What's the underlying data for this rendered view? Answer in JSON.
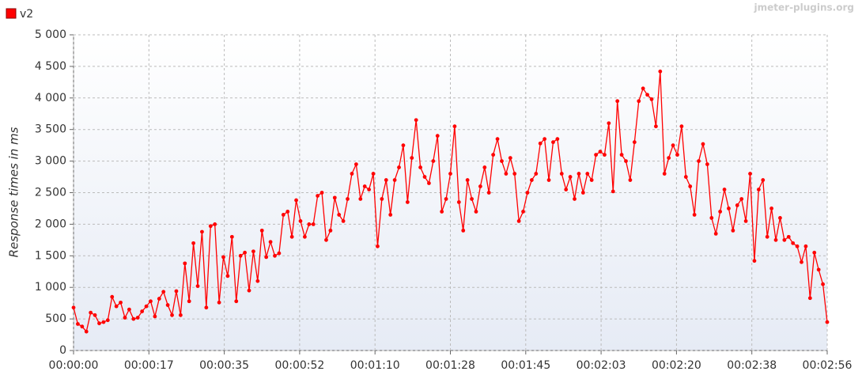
{
  "chart_data": {
    "type": "line",
    "watermark": "jmeter-plugins.org",
    "y_label": "Response times in ms",
    "x": [
      0,
      1,
      2,
      3,
      4,
      5,
      6,
      7,
      8,
      9,
      10,
      11,
      12,
      13,
      14,
      15,
      16,
      17,
      18,
      19,
      20,
      21,
      22,
      23,
      24,
      25,
      26,
      27,
      28,
      29,
      30,
      31,
      32,
      33,
      34,
      35,
      36,
      37,
      38,
      39,
      40,
      41,
      42,
      43,
      44,
      45,
      46,
      47,
      48,
      49,
      50,
      51,
      52,
      53,
      54,
      55,
      56,
      57,
      58,
      59,
      60,
      61,
      62,
      63,
      64,
      65,
      66,
      67,
      68,
      69,
      70,
      71,
      72,
      73,
      74,
      75,
      76,
      77,
      78,
      79,
      80,
      81,
      82,
      83,
      84,
      85,
      86,
      87,
      88,
      89,
      90,
      91,
      92,
      93,
      94,
      95,
      96,
      97,
      98,
      99,
      100,
      101,
      102,
      103,
      104,
      105,
      106,
      107,
      108,
      109,
      110,
      111,
      112,
      113,
      114,
      115,
      116,
      117,
      118,
      119,
      120,
      121,
      122,
      123,
      124,
      125,
      126,
      127,
      128,
      129,
      130,
      131,
      132,
      133,
      134,
      135,
      136,
      137,
      138,
      139,
      140,
      141,
      142,
      143,
      144,
      145,
      146,
      147,
      148,
      149,
      150,
      151,
      152,
      153,
      154,
      155,
      156,
      157,
      158,
      159,
      160,
      161,
      162,
      163,
      164,
      165,
      166,
      167,
      168,
      169,
      170,
      171,
      172,
      173,
      174,
      175,
      176
    ],
    "series": [
      {
        "name": "v2",
        "color": "#ff0000",
        "values": [
          680,
          420,
          380,
          300,
          600,
          560,
          430,
          450,
          480,
          850,
          700,
          760,
          520,
          650,
          500,
          520,
          620,
          700,
          780,
          540,
          820,
          930,
          720,
          560,
          940,
          560,
          1380,
          780,
          1700,
          1020,
          1880,
          680,
          1970,
          2000,
          760,
          1480,
          1180,
          1800,
          780,
          1500,
          1550,
          950,
          1570,
          1100,
          1900,
          1480,
          1720,
          1500,
          1540,
          2150,
          2200,
          1800,
          2380,
          2050,
          1800,
          2000,
          2000,
          2450,
          2500,
          1750,
          1900,
          2420,
          2150,
          2050,
          2400,
          2800,
          2950,
          2400,
          2600,
          2550,
          2800,
          1650,
          2400,
          2700,
          2150,
          2700,
          2900,
          3250,
          2350,
          3050,
          3650,
          2900,
          2750,
          2650,
          3000,
          3400,
          2200,
          2400,
          2800,
          3550,
          2350,
          1900,
          2700,
          2400,
          2200,
          2600,
          2900,
          2500,
          3100,
          3350,
          3000,
          2800,
          3050,
          2800,
          2050,
          2200,
          2500,
          2700,
          2800,
          3280,
          3350,
          2700,
          3300,
          3350,
          2800,
          2550,
          2750,
          2400,
          2800,
          2500,
          2800,
          2700,
          3100,
          3150,
          3100,
          3600,
          2520,
          3950,
          3100,
          3000,
          2700,
          3300,
          3950,
          4150,
          4050,
          3980,
          3550,
          4420,
          2800,
          3050,
          3250,
          3100,
          3550,
          2750,
          2600,
          2150,
          3000,
          3270,
          2950,
          2100,
          1850,
          2200,
          2550,
          2250,
          1900,
          2300,
          2400,
          2050,
          2800,
          1420,
          2550,
          2700,
          1800,
          2250,
          1750,
          2100,
          1750,
          1800,
          1700,
          1650,
          1400,
          1650,
          830,
          1550,
          1280,
          1050,
          450
        ]
      }
    ],
    "xlim": [
      0,
      176
    ],
    "xticks": [
      {
        "value": 0,
        "label": "00:00:00"
      },
      {
        "value": 17.6,
        "label": "00:00:17"
      },
      {
        "value": 35.2,
        "label": "00:00:35"
      },
      {
        "value": 52.8,
        "label": "00:00:52"
      },
      {
        "value": 70.4,
        "label": "00:01:10"
      },
      {
        "value": 88,
        "label": "00:01:28"
      },
      {
        "value": 105.6,
        "label": "00:01:45"
      },
      {
        "value": 123.2,
        "label": "00:02:03"
      },
      {
        "value": 140.8,
        "label": "00:02:20"
      },
      {
        "value": 158.4,
        "label": "00:02:38"
      },
      {
        "value": 176,
        "label": "00:02:56"
      }
    ],
    "ylim": [
      0,
      5000
    ],
    "yticks": [
      0,
      500,
      {
        "value": 1000,
        "label": "1 000"
      },
      {
        "value": 1500,
        "label": "1 500"
      },
      {
        "value": 2000,
        "label": "2 000"
      },
      {
        "value": 2500,
        "label": "2 500"
      },
      {
        "value": 3000,
        "label": "3 000"
      },
      {
        "value": 3500,
        "label": "3 500"
      },
      {
        "value": 4000,
        "label": "4 000"
      },
      {
        "value": 4500,
        "label": "4 500"
      },
      {
        "value": 5000,
        "label": "5 000"
      }
    ],
    "grid": true
  }
}
